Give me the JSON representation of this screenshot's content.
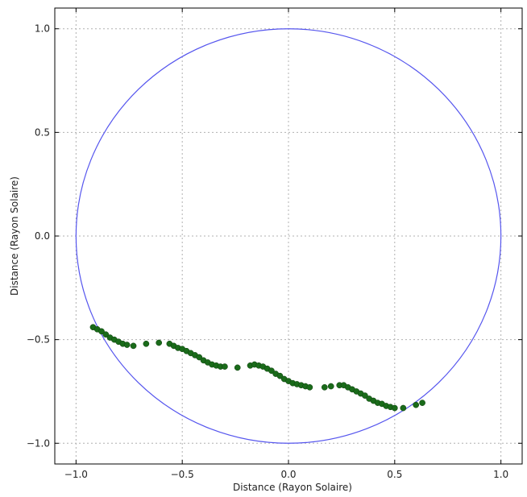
{
  "chart_data": {
    "type": "scatter",
    "xlabel": "Distance (Rayon Solaire)",
    "ylabel": "Distance (Rayon Solaire)",
    "xlim": [
      -1.1,
      1.1
    ],
    "ylim": [
      -1.1,
      1.1
    ],
    "xticks": [
      "−1.0",
      "−0.5",
      "0.0",
      "0.5",
      "1.0"
    ],
    "yticks": [
      "−1.0",
      "−0.5",
      "0.0",
      "0.5",
      "1.0"
    ],
    "grid": true,
    "circle": {
      "center": [
        0,
        0
      ],
      "radius": 1.0,
      "color": "#5555ee"
    },
    "point_color": "#1a6b1a",
    "points": [
      [
        -0.92,
        -0.44
      ],
      [
        -0.9,
        -0.45
      ],
      [
        -0.88,
        -0.46
      ],
      [
        -0.86,
        -0.475
      ],
      [
        -0.84,
        -0.49
      ],
      [
        -0.82,
        -0.5
      ],
      [
        -0.8,
        -0.51
      ],
      [
        -0.78,
        -0.52
      ],
      [
        -0.76,
        -0.525
      ],
      [
        -0.73,
        -0.53
      ],
      [
        -0.67,
        -0.52
      ],
      [
        -0.61,
        -0.515
      ],
      [
        -0.56,
        -0.52
      ],
      [
        -0.54,
        -0.53
      ],
      [
        -0.52,
        -0.54
      ],
      [
        -0.5,
        -0.545
      ],
      [
        -0.48,
        -0.555
      ],
      [
        -0.46,
        -0.565
      ],
      [
        -0.44,
        -0.575
      ],
      [
        -0.42,
        -0.585
      ],
      [
        -0.4,
        -0.6
      ],
      [
        -0.38,
        -0.61
      ],
      [
        -0.36,
        -0.62
      ],
      [
        -0.34,
        -0.625
      ],
      [
        -0.32,
        -0.63
      ],
      [
        -0.3,
        -0.63
      ],
      [
        -0.24,
        -0.635
      ],
      [
        -0.18,
        -0.625
      ],
      [
        -0.16,
        -0.62
      ],
      [
        -0.14,
        -0.625
      ],
      [
        -0.12,
        -0.63
      ],
      [
        -0.1,
        -0.64
      ],
      [
        -0.08,
        -0.65
      ],
      [
        -0.06,
        -0.665
      ],
      [
        -0.04,
        -0.675
      ],
      [
        -0.02,
        -0.69
      ],
      [
        0.0,
        -0.7
      ],
      [
        0.02,
        -0.71
      ],
      [
        0.04,
        -0.715
      ],
      [
        0.06,
        -0.72
      ],
      [
        0.08,
        -0.725
      ],
      [
        0.1,
        -0.73
      ],
      [
        0.17,
        -0.73
      ],
      [
        0.2,
        -0.725
      ],
      [
        0.24,
        -0.72
      ],
      [
        0.26,
        -0.72
      ],
      [
        0.28,
        -0.73
      ],
      [
        0.3,
        -0.74
      ],
      [
        0.32,
        -0.75
      ],
      [
        0.34,
        -0.76
      ],
      [
        0.36,
        -0.77
      ],
      [
        0.38,
        -0.785
      ],
      [
        0.4,
        -0.795
      ],
      [
        0.42,
        -0.805
      ],
      [
        0.44,
        -0.81
      ],
      [
        0.46,
        -0.82
      ],
      [
        0.48,
        -0.825
      ],
      [
        0.5,
        -0.83
      ],
      [
        0.54,
        -0.83
      ],
      [
        0.6,
        -0.815
      ],
      [
        0.63,
        -0.805
      ]
    ]
  }
}
